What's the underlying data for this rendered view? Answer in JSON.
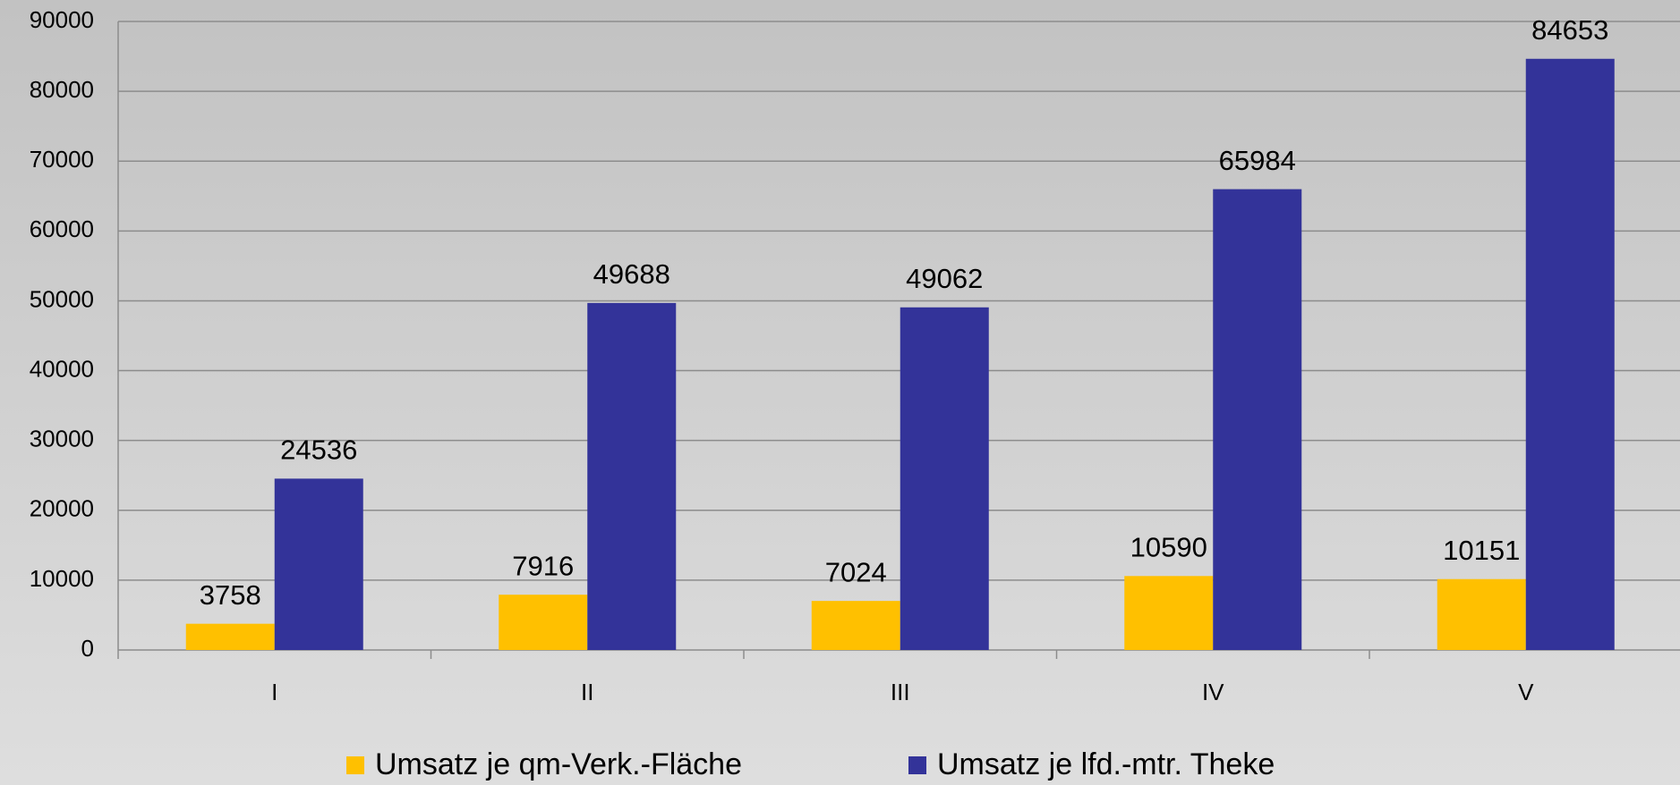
{
  "chart_data": {
    "type": "bar",
    "categories": [
      "I",
      "II",
      "III",
      "IV",
      "V"
    ],
    "series": [
      {
        "name": "Umsatz je qm-Verk.-Fläche",
        "color": "#ffc000",
        "values": [
          3758,
          7916,
          7024,
          10590,
          10151
        ]
      },
      {
        "name": "Umsatz je lfd.-mtr. Theke",
        "color": "#333399",
        "values": [
          24536,
          49688,
          49062,
          65984,
          84653
        ]
      }
    ],
    "ylim": [
      0,
      90000
    ],
    "yticks": [
      0,
      10000,
      20000,
      30000,
      40000,
      50000,
      60000,
      70000,
      80000,
      90000
    ],
    "grid": true,
    "legend": "bottom"
  }
}
